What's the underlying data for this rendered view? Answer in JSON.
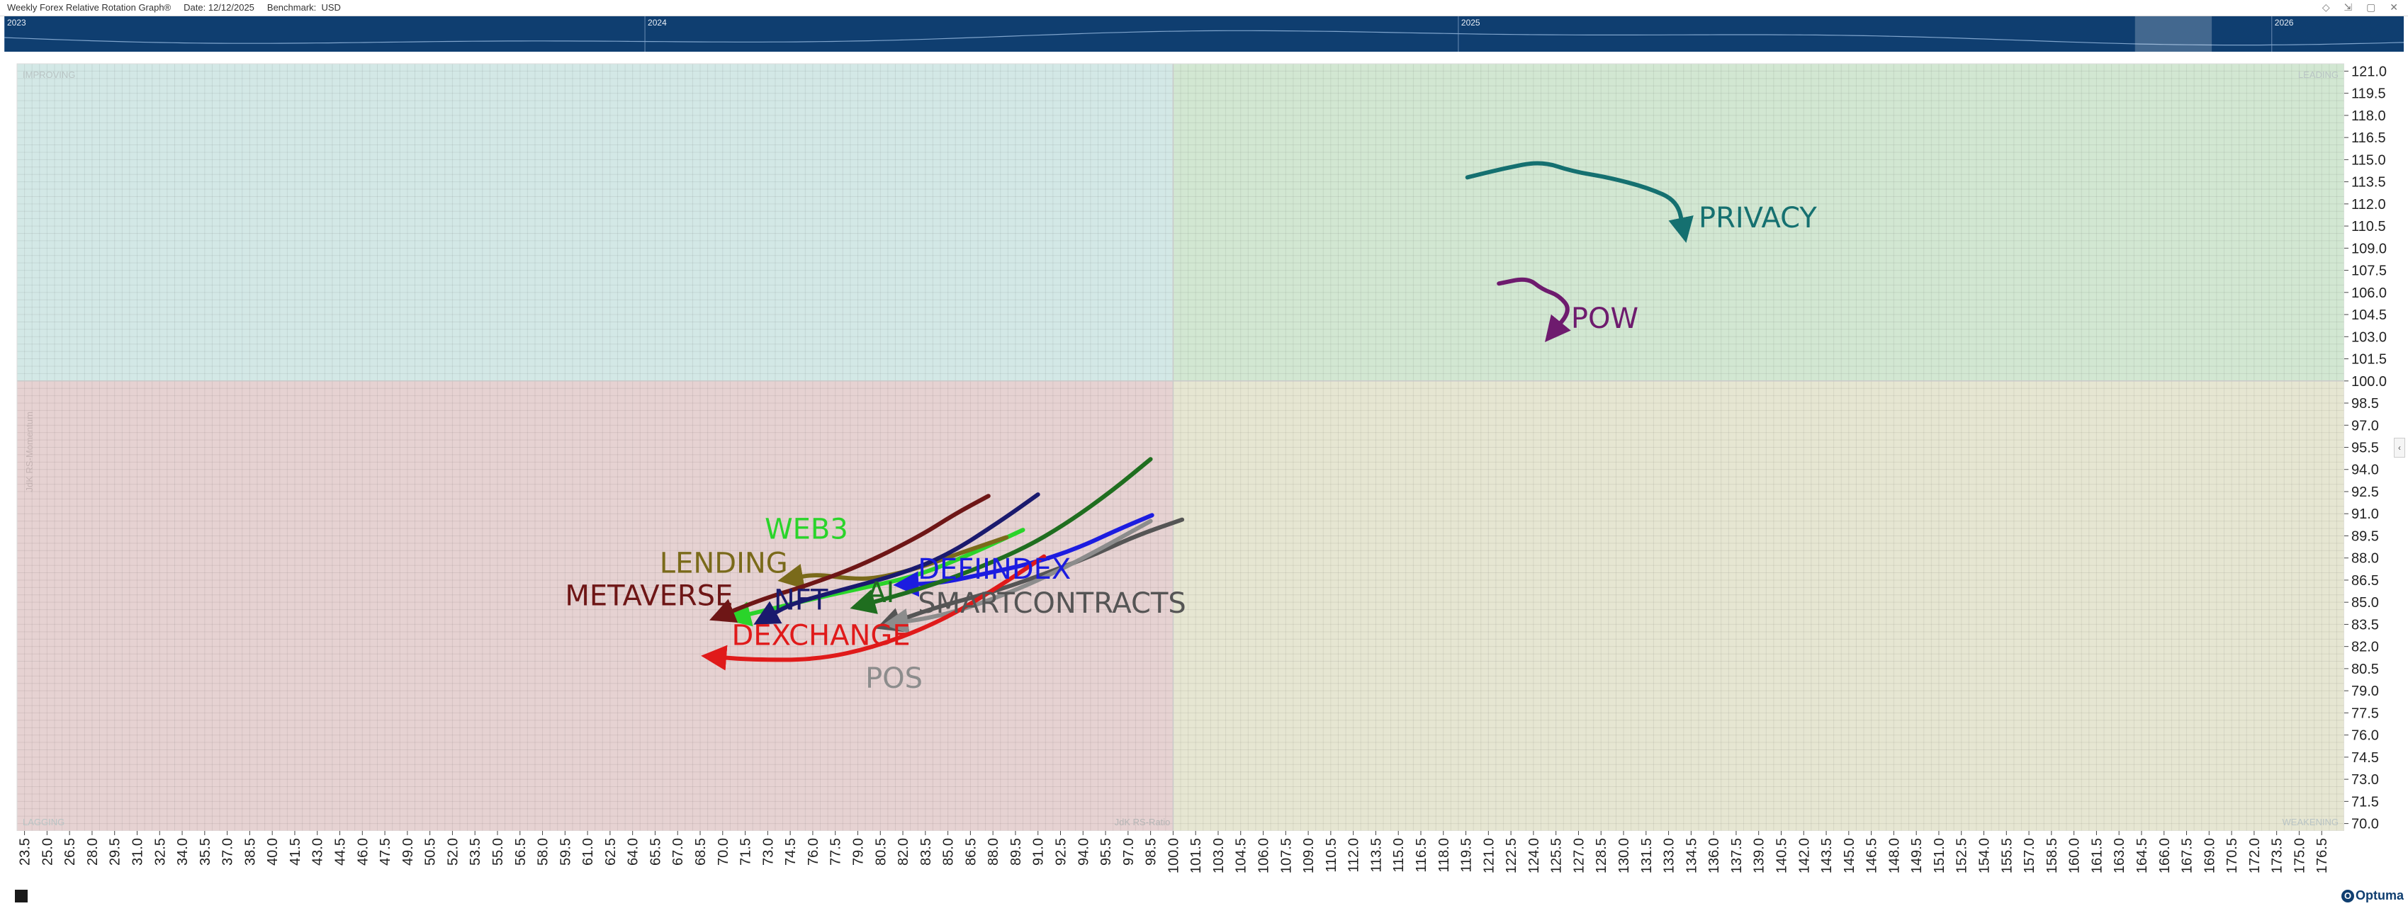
{
  "header": {
    "title": "Weekly Forex Relative Rotation Graph®",
    "date": "Date: 12/12/2025",
    "benchmark": "Benchmark:  USD",
    "window_icons": "◇ ⇲ ▢ ✕"
  },
  "timeline": {
    "years": [
      {
        "label": "2023",
        "pos": 0.0
      },
      {
        "label": "2024",
        "pos": 0.267
      },
      {
        "label": "2025",
        "pos": 0.606
      },
      {
        "label": "2026",
        "pos": 0.945
      }
    ],
    "selection": {
      "start": 0.888,
      "end": 0.92
    }
  },
  "right_tab_icon": "‹",
  "logo": {
    "mark": "O",
    "text": "Optuma"
  },
  "chart_data": {
    "type": "scatter",
    "title": "Weekly Forex Relative Rotation Graph®",
    "xlabel": "JdK RS-Ratio",
    "ylabel": "JdK RS-Momentum",
    "xlim": [
      23.0,
      178.0
    ],
    "ylim": [
      69.5,
      121.5
    ],
    "center": [
      100,
      100
    ],
    "x_ticks": [
      "23.5",
      "25.0",
      "26.5",
      "28.0",
      "29.5",
      "31.0",
      "32.5",
      "34.0",
      "35.5",
      "37.0",
      "38.5",
      "40.0",
      "41.5",
      "43.0",
      "44.5",
      "46.0",
      "47.5",
      "49.0",
      "50.5",
      "52.0",
      "53.5",
      "55.0",
      "56.5",
      "58.0",
      "59.5",
      "61.0",
      "62.5",
      "64.0",
      "65.5",
      "67.0",
      "68.5",
      "70.0",
      "71.5",
      "73.0",
      "74.5",
      "76.0",
      "77.5",
      "79.0",
      "80.5",
      "82.0",
      "83.5",
      "85.0",
      "86.5",
      "88.0",
      "89.5",
      "91.0",
      "92.5",
      "94.0",
      "95.5",
      "97.0",
      "98.5",
      "100.0",
      "101.5",
      "103.0",
      "104.5",
      "106.0",
      "107.5",
      "109.0",
      "110.5",
      "112.0",
      "113.5",
      "115.0",
      "116.5",
      "118.0",
      "119.5",
      "121.0",
      "122.5",
      "124.0",
      "125.5",
      "127.0",
      "128.5",
      "130.0",
      "131.5",
      "133.0",
      "134.5",
      "136.0",
      "137.5",
      "139.0",
      "140.5",
      "142.0",
      "143.5",
      "145.0",
      "146.5",
      "148.0",
      "149.5",
      "151.0",
      "152.5",
      "154.0",
      "155.5",
      "157.0",
      "158.5",
      "160.0",
      "161.5",
      "163.0",
      "164.5",
      "166.0",
      "167.5",
      "169.0",
      "170.5",
      "172.0",
      "173.5",
      "175.0",
      "176.5"
    ],
    "y_ticks": [
      "121.0",
      "119.5",
      "118.0",
      "116.5",
      "115.0",
      "113.5",
      "112.0",
      "110.5",
      "109.0",
      "107.5",
      "106.0",
      "104.5",
      "103.0",
      "101.5",
      "100.0",
      "98.5",
      "97.0",
      "95.5",
      "94.0",
      "92.5",
      "91.0",
      "89.5",
      "88.0",
      "86.5",
      "85.0",
      "83.5",
      "82.0",
      "80.5",
      "79.0",
      "77.5",
      "76.0",
      "74.5",
      "73.0",
      "71.5",
      "70.0"
    ],
    "grid": true,
    "quadrants": [
      {
        "name": "IMPROVING",
        "color": "#d3e8e6"
      },
      {
        "name": "LEADING",
        "color": "#d2e7d2"
      },
      {
        "name": "LAGGING",
        "color": "#e6d2d2"
      },
      {
        "name": "WEAKENING",
        "color": "#e6e6d2"
      }
    ],
    "series": [
      {
        "name": "PRIVACY",
        "color": "#157070",
        "points": [
          [
            119.6,
            113.8
          ],
          [
            122.0,
            114.4
          ],
          [
            124.5,
            114.9
          ],
          [
            126.6,
            114.2
          ],
          [
            129.0,
            113.8
          ],
          [
            131.6,
            113.1
          ],
          [
            133.6,
            112.2
          ],
          [
            134.0,
            110.2
          ]
        ]
      },
      {
        "name": "POW",
        "color": "#6e1b6e",
        "points": [
          [
            121.7,
            106.6
          ],
          [
            123.6,
            107.0
          ],
          [
            124.6,
            106.2
          ],
          [
            125.7,
            105.8
          ],
          [
            126.5,
            104.8
          ],
          [
            125.3,
            103.3
          ]
        ]
      },
      {
        "name": "WEB3",
        "color": "#2ad42a",
        "points": [
          [
            90.0,
            89.9
          ],
          [
            86.6,
            88.3
          ],
          [
            83.0,
            86.8
          ],
          [
            79.5,
            86.0
          ],
          [
            76.3,
            85.3
          ],
          [
            71.0,
            84.0
          ]
        ]
      },
      {
        "name": "LENDING",
        "color": "#7a6a1a",
        "points": [
          [
            88.9,
            89.4
          ],
          [
            86.0,
            88.4
          ],
          [
            83.0,
            87.3
          ],
          [
            80.2,
            86.6
          ],
          [
            78.4,
            86.6
          ],
          [
            76.2,
            86.9
          ],
          [
            74.5,
            86.6
          ]
        ]
      },
      {
        "name": "METAVERSE",
        "color": "#6e1616",
        "points": [
          [
            87.7,
            92.2
          ],
          [
            85.5,
            91.0
          ],
          [
            83.0,
            89.4
          ],
          [
            79.0,
            87.4
          ],
          [
            75.5,
            86.1
          ],
          [
            72.6,
            85.2
          ],
          [
            69.9,
            84.1
          ]
        ]
      },
      {
        "name": "NFT",
        "color": "#1a1a6e",
        "points": [
          [
            91.0,
            92.3
          ],
          [
            88.5,
            90.5
          ],
          [
            85.0,
            88.2
          ],
          [
            81.8,
            86.9
          ],
          [
            78.5,
            86.0
          ],
          [
            76.0,
            85.3
          ],
          [
            74.4,
            84.8
          ],
          [
            72.8,
            83.9
          ]
        ]
      },
      {
        "name": "DEFIINDEX",
        "color": "#1c1ce0",
        "points": [
          [
            98.6,
            90.9
          ],
          [
            96.5,
            90.0
          ],
          [
            93.5,
            88.6
          ],
          [
            90.5,
            87.6
          ],
          [
            87.3,
            86.9
          ],
          [
            84.5,
            86.3
          ],
          [
            82.2,
            86.2
          ]
        ]
      },
      {
        "name": "AI",
        "color": "#1f6e1f",
        "points": [
          [
            98.5,
            94.7
          ],
          [
            96.0,
            92.6
          ],
          [
            93.0,
            90.4
          ],
          [
            90.0,
            88.6
          ],
          [
            86.0,
            86.9
          ],
          [
            82.5,
            85.7
          ],
          [
            79.3,
            84.8
          ]
        ]
      },
      {
        "name": "SMARTCONTRACTS",
        "color": "#555555",
        "points": [
          [
            100.6,
            90.6
          ],
          [
            97.5,
            89.5
          ],
          [
            94.5,
            88.1
          ],
          [
            91.4,
            86.9
          ],
          [
            88.0,
            85.7
          ],
          [
            84.0,
            84.6
          ],
          [
            81.0,
            83.5
          ]
        ]
      },
      {
        "name": "POS",
        "color": "#8c8c8c",
        "points": [
          [
            98.5,
            90.5
          ],
          [
            95.5,
            88.8
          ],
          [
            92.5,
            87.2
          ],
          [
            89.5,
            85.8
          ],
          [
            86.0,
            84.5
          ],
          [
            83.6,
            83.9
          ],
          [
            81.5,
            83.6
          ]
        ]
      },
      {
        "name": "DEXCHANGE",
        "color": "#e01a1a",
        "points": [
          [
            91.4,
            88.1
          ],
          [
            88.0,
            85.8
          ],
          [
            84.5,
            83.7
          ],
          [
            80.3,
            82.0
          ],
          [
            76.3,
            81.1
          ],
          [
            71.9,
            81.1
          ],
          [
            69.4,
            81.3
          ]
        ]
      }
    ],
    "labels": [
      {
        "text": "PRIVACY",
        "series": "PRIVACY",
        "at": [
          135.0,
          110.4
        ],
        "size": 40
      },
      {
        "text": "POW",
        "series": "POW",
        "at": [
          126.5,
          103.6
        ],
        "size": 40
      },
      {
        "text": "WEB3",
        "series": "WEB3",
        "at": [
          72.8,
          89.3
        ],
        "size": 40
      },
      {
        "text": "LENDING",
        "series": "LENDING",
        "at": [
          65.8,
          87.0
        ],
        "size": 40
      },
      {
        "text": "METAVERSE",
        "series": "METAVERSE",
        "at": [
          59.5,
          84.8
        ],
        "size": 40
      },
      {
        "text": "NFT",
        "series": "NFT",
        "at": [
          73.4,
          84.5
        ],
        "size": 40
      },
      {
        "text": "DEFIINDEX",
        "series": "DEFIINDEX",
        "at": [
          83.0,
          86.6
        ],
        "size": 40
      },
      {
        "text": "AI",
        "series": "AI",
        "at": [
          79.6,
          85.0
        ],
        "size": 40
      },
      {
        "text": "SMARTCONTRACTS",
        "series": "SMARTCONTRACTS",
        "at": [
          83.0,
          84.3
        ],
        "size": 40
      },
      {
        "text": "DEXCHANGE",
        "series": "DEXCHANGE",
        "at": [
          70.6,
          82.1
        ],
        "size": 40
      },
      {
        "text": "POS",
        "series": "POS",
        "at": [
          79.5,
          79.2
        ],
        "size": 40
      }
    ]
  }
}
